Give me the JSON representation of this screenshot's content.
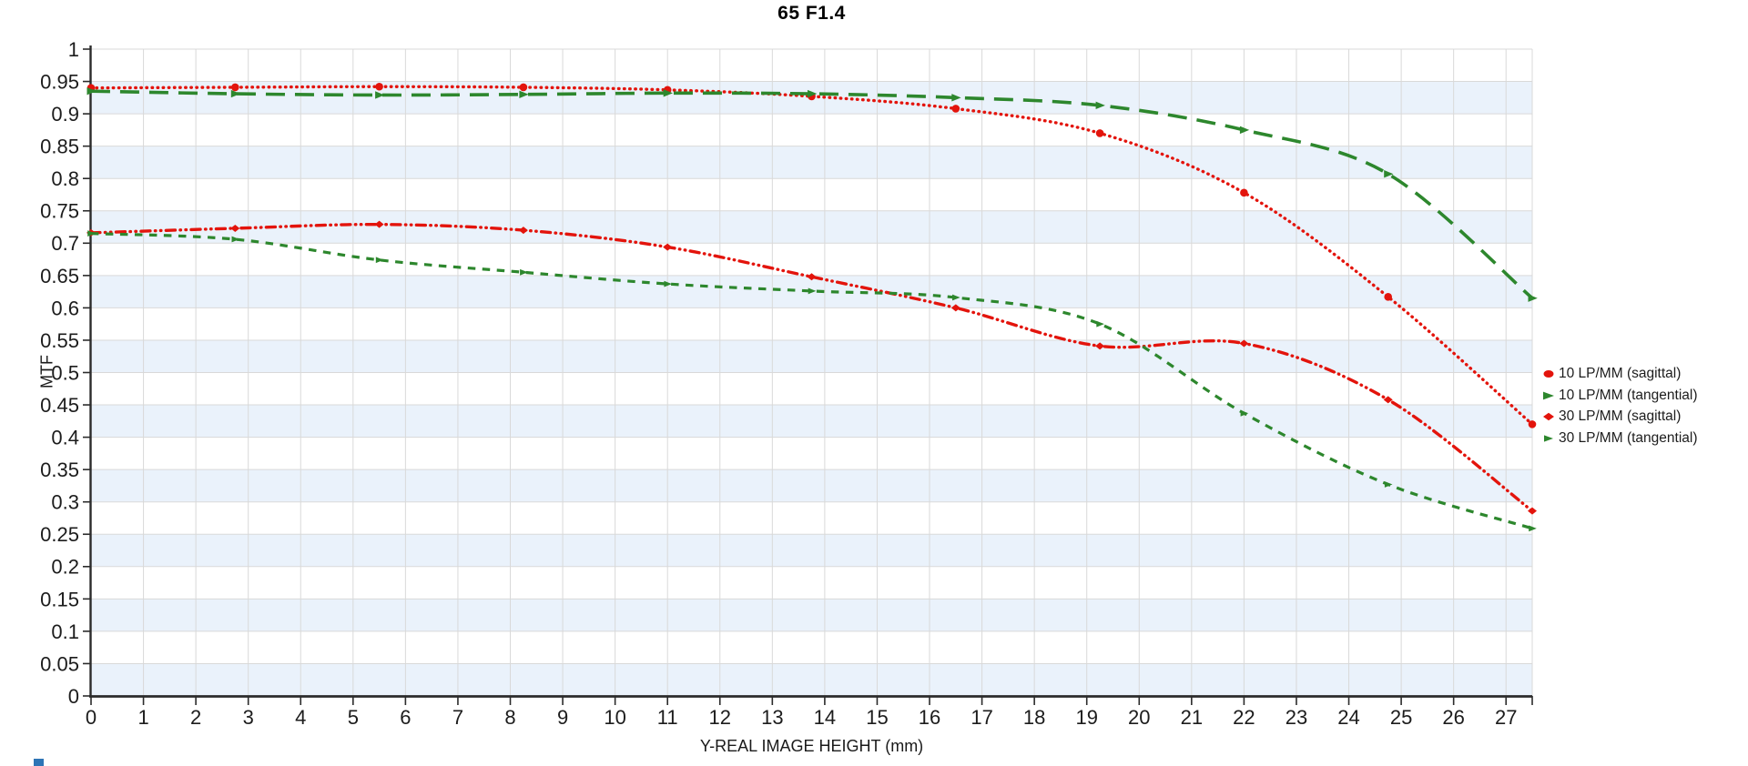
{
  "title": "65 F1.4",
  "chart_data": {
    "type": "line",
    "title": "65 F1.4",
    "xlabel": "Y-REAL IMAGE HEIGHT (mm)",
    "ylabel": "MTF",
    "xlim": [
      0,
      27.5
    ],
    "ylim": [
      0,
      1
    ],
    "x_tick_step": 1,
    "x_last_labeled_tick": 27,
    "y_tick_step": 0.05,
    "grid": true,
    "legend_position": "right",
    "colors": {
      "red": "#e3140c",
      "green": "#2d872d",
      "band_blue": "#eaf2fb",
      "band_white": "#ffffff",
      "gridline": "#d9d9d9",
      "axis": "#2b2b2b",
      "tick_text": "#1c1c1c"
    },
    "x": [
      0,
      2.75,
      5.5,
      8.25,
      11,
      13.75,
      16.5,
      19.25,
      22,
      24.75,
      27.5
    ],
    "series": [
      {
        "name": "10 LP/MM (sagittal)",
        "color": "#e3140c",
        "line": "dot",
        "marker": "circle",
        "values": [
          0.94,
          0.941,
          0.942,
          0.941,
          0.937,
          0.927,
          0.908,
          0.87,
          0.778,
          0.617,
          0.42
        ]
      },
      {
        "name": "10 LP/MM (tangential)",
        "color": "#2d872d",
        "line": "long-dash",
        "marker": "arrow",
        "values": [
          0.935,
          0.931,
          0.929,
          0.93,
          0.932,
          0.931,
          0.925,
          0.913,
          0.875,
          0.807,
          0.615
        ]
      },
      {
        "name": "30 LP/MM (sagittal)",
        "color": "#e3140c",
        "line": "dash-dot-dot",
        "marker": "diamond",
        "values": [
          0.716,
          0.723,
          0.729,
          0.72,
          0.694,
          0.648,
          0.6,
          0.541,
          0.545,
          0.458,
          0.286
        ]
      },
      {
        "name": "30 LP/MM (tangential)",
        "color": "#2d872d",
        "line": "short-dash",
        "marker": "arrow-small",
        "values": [
          0.715,
          0.706,
          0.674,
          0.655,
          0.637,
          0.626,
          0.616,
          0.575,
          0.437,
          0.327,
          0.259
        ]
      }
    ]
  },
  "footer_mark_color": "#2e75b6"
}
